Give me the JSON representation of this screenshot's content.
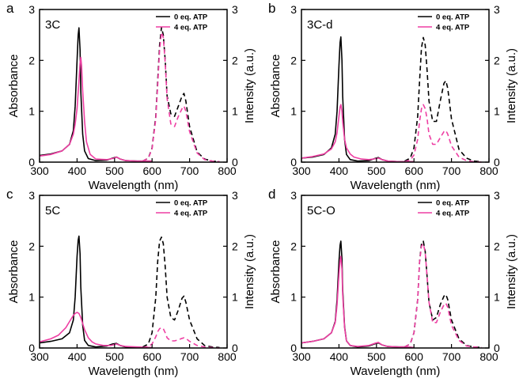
{
  "figure": {
    "series_labels": [
      "0 eq. ATP",
      "4 eq. ATP"
    ],
    "colors": {
      "zero_eq": "#000000",
      "four_eq": "#ee3fa3"
    }
  },
  "chart_data": [
    {
      "type": "line",
      "letter": "a",
      "name": "3C",
      "xlabel": "Wavelength (nm)",
      "ylabel": "Absorbance",
      "y2label": "Intensity (a.u.)",
      "xlim": [
        300,
        800
      ],
      "ylim": [
        0,
        3
      ],
      "y2lim": [
        0,
        3
      ],
      "xticks": [
        300,
        400,
        500,
        600,
        700,
        800
      ],
      "yticks": [
        0,
        1,
        2,
        3
      ],
      "y2ticks": [
        0,
        1,
        2,
        3
      ],
      "legend_position": "top-right",
      "series": [
        {
          "name": "0 eq. ATP",
          "kind": "absorbance",
          "color": "#000000",
          "x": [
            300,
            330,
            360,
            380,
            390,
            395,
            400,
            403,
            405,
            408,
            410,
            415,
            420,
            430,
            450,
            480,
            495,
            505,
            515,
            530,
            560,
            580,
            600
          ],
          "y": [
            0.13,
            0.16,
            0.22,
            0.35,
            0.62,
            1.1,
            2.0,
            2.5,
            2.64,
            2.2,
            1.4,
            0.55,
            0.22,
            0.07,
            0.03,
            0.04,
            0.08,
            0.1,
            0.06,
            0.03,
            0.02,
            0.02,
            0.02
          ]
        },
        {
          "name": "4 eq. ATP",
          "kind": "absorbance",
          "color": "#ee3fa3",
          "x": [
            300,
            330,
            360,
            380,
            390,
            395,
            400,
            405,
            408,
            410,
            412,
            415,
            420,
            425,
            435,
            450,
            480,
            500,
            505,
            515,
            530,
            560,
            600
          ],
          "y": [
            0.12,
            0.15,
            0.22,
            0.35,
            0.55,
            0.75,
            1.05,
            1.6,
            1.95,
            2.06,
            1.9,
            1.4,
            0.8,
            0.4,
            0.15,
            0.06,
            0.05,
            0.08,
            0.1,
            0.06,
            0.03,
            0.02,
            0.02
          ]
        },
        {
          "name": "0 eq. ATP",
          "kind": "emission",
          "color": "#000000",
          "x": [
            575,
            590,
            600,
            610,
            615,
            620,
            625,
            630,
            635,
            640,
            650,
            660,
            670,
            680,
            685,
            690,
            700,
            720,
            740,
            760,
            780
          ],
          "y": [
            0.02,
            0.08,
            0.28,
            0.9,
            1.6,
            2.3,
            2.65,
            2.5,
            2.0,
            1.3,
            0.95,
            0.9,
            1.1,
            1.3,
            1.35,
            1.2,
            0.7,
            0.2,
            0.06,
            0.02,
            0.01
          ]
        },
        {
          "name": "4 eq. ATP",
          "kind": "emission",
          "color": "#ee3fa3",
          "x": [
            575,
            590,
            600,
            610,
            615,
            620,
            625,
            630,
            635,
            640,
            650,
            660,
            670,
            680,
            685,
            690,
            700,
            720,
            740,
            760,
            780
          ],
          "y": [
            0.02,
            0.08,
            0.26,
            0.85,
            1.5,
            2.2,
            2.55,
            2.45,
            1.95,
            1.25,
            0.75,
            0.7,
            0.9,
            1.05,
            1.1,
            1.0,
            0.6,
            0.18,
            0.05,
            0.02,
            0.01
          ]
        }
      ]
    },
    {
      "type": "line",
      "letter": "b",
      "name": "3C-d",
      "xlabel": "Wavelength (nm)",
      "ylabel": "Absorbance",
      "y2label": "Intensity (a.u.)",
      "xlim": [
        300,
        800
      ],
      "ylim": [
        0,
        3
      ],
      "y2lim": [
        0,
        3
      ],
      "xticks": [
        300,
        400,
        500,
        600,
        700,
        800
      ],
      "yticks": [
        0,
        1,
        2,
        3
      ],
      "y2ticks": [
        0,
        1,
        2,
        3
      ],
      "legend_position": "top-right",
      "series": [
        {
          "name": "0 eq. ATP",
          "kind": "absorbance",
          "color": "#000000",
          "x": [
            300,
            330,
            360,
            380,
            390,
            395,
            400,
            403,
            405,
            408,
            410,
            415,
            420,
            430,
            450,
            480,
            495,
            505,
            515,
            530,
            560,
            580,
            600
          ],
          "y": [
            0.08,
            0.1,
            0.15,
            0.28,
            0.55,
            1.0,
            1.9,
            2.35,
            2.46,
            2.0,
            1.3,
            0.45,
            0.15,
            0.05,
            0.02,
            0.03,
            0.07,
            0.09,
            0.05,
            0.02,
            0.01,
            0.01,
            0.01
          ]
        },
        {
          "name": "4 eq. ATP",
          "kind": "absorbance",
          "color": "#ee3fa3",
          "x": [
            300,
            330,
            360,
            380,
            390,
            395,
            400,
            403,
            405,
            408,
            410,
            415,
            420,
            430,
            440,
            460,
            480,
            500,
            505,
            515,
            530,
            560,
            600
          ],
          "y": [
            0.08,
            0.11,
            0.16,
            0.26,
            0.4,
            0.58,
            0.9,
            1.08,
            1.13,
            1.0,
            0.8,
            0.45,
            0.28,
            0.16,
            0.1,
            0.06,
            0.05,
            0.07,
            0.08,
            0.05,
            0.02,
            0.01,
            0.01
          ]
        },
        {
          "name": "0 eq. ATP",
          "kind": "emission",
          "color": "#000000",
          "x": [
            575,
            590,
            600,
            610,
            615,
            620,
            625,
            630,
            635,
            640,
            650,
            660,
            670,
            680,
            685,
            690,
            700,
            720,
            740,
            760,
            780
          ],
          "y": [
            0.02,
            0.08,
            0.28,
            0.9,
            1.6,
            2.25,
            2.45,
            2.3,
            1.8,
            1.2,
            0.8,
            0.8,
            1.2,
            1.55,
            1.6,
            1.45,
            0.85,
            0.25,
            0.08,
            0.02,
            0.01
          ]
        },
        {
          "name": "4 eq. ATP",
          "kind": "emission",
          "color": "#ee3fa3",
          "x": [
            575,
            590,
            600,
            610,
            615,
            620,
            625,
            630,
            635,
            640,
            650,
            660,
            670,
            680,
            685,
            690,
            700,
            720,
            740,
            760,
            780
          ],
          "y": [
            0.01,
            0.04,
            0.14,
            0.45,
            0.8,
            1.05,
            1.13,
            1.05,
            0.85,
            0.55,
            0.35,
            0.35,
            0.48,
            0.6,
            0.62,
            0.55,
            0.32,
            0.1,
            0.03,
            0.01,
            0.0
          ]
        }
      ]
    },
    {
      "type": "line",
      "letter": "c",
      "name": "5C",
      "xlabel": "Wavelength (nm)",
      "ylabel": "Absorbance",
      "y2label": "Intensity (a.u.)",
      "xlim": [
        300,
        800
      ],
      "ylim": [
        0,
        3
      ],
      "y2lim": [
        0,
        3
      ],
      "xticks": [
        300,
        400,
        500,
        600,
        700,
        800
      ],
      "yticks": [
        0,
        1,
        2,
        3
      ],
      "y2ticks": [
        0,
        1,
        2,
        3
      ],
      "legend_position": "top-right",
      "series": [
        {
          "name": "0 eq. ATP",
          "kind": "absorbance",
          "color": "#000000",
          "x": [
            300,
            330,
            360,
            380,
            390,
            395,
            400,
            403,
            405,
            408,
            410,
            415,
            420,
            430,
            450,
            480,
            495,
            505,
            515,
            530,
            560,
            580,
            600
          ],
          "y": [
            0.1,
            0.13,
            0.18,
            0.3,
            0.55,
            1.0,
            1.8,
            2.12,
            2.2,
            1.85,
            1.2,
            0.45,
            0.15,
            0.05,
            0.02,
            0.04,
            0.08,
            0.09,
            0.05,
            0.02,
            0.01,
            0.01,
            0.01
          ]
        },
        {
          "name": "4 eq. ATP",
          "kind": "absorbance",
          "color": "#ee3fa3",
          "x": [
            300,
            330,
            350,
            370,
            380,
            390,
            395,
            400,
            405,
            410,
            415,
            420,
            430,
            440,
            450,
            470,
            490,
            500,
            505,
            515,
            530,
            560,
            600
          ],
          "y": [
            0.12,
            0.18,
            0.25,
            0.4,
            0.52,
            0.64,
            0.68,
            0.7,
            0.68,
            0.6,
            0.48,
            0.36,
            0.2,
            0.12,
            0.08,
            0.05,
            0.05,
            0.07,
            0.08,
            0.05,
            0.03,
            0.02,
            0.01
          ]
        },
        {
          "name": "0 eq. ATP",
          "kind": "emission",
          "color": "#000000",
          "x": [
            575,
            590,
            600,
            610,
            615,
            620,
            625,
            630,
            635,
            640,
            650,
            660,
            670,
            680,
            685,
            690,
            700,
            720,
            740,
            760,
            780
          ],
          "y": [
            0.02,
            0.08,
            0.3,
            1.0,
            1.7,
            2.1,
            2.18,
            2.05,
            1.6,
            1.0,
            0.6,
            0.55,
            0.75,
            0.98,
            1.02,
            0.9,
            0.55,
            0.18,
            0.05,
            0.02,
            0.01
          ]
        },
        {
          "name": "4 eq. ATP",
          "kind": "emission",
          "color": "#ee3fa3",
          "x": [
            575,
            590,
            600,
            610,
            615,
            620,
            625,
            630,
            635,
            640,
            650,
            660,
            670,
            680,
            685,
            690,
            700,
            720,
            740,
            760,
            780
          ],
          "y": [
            0.01,
            0.03,
            0.08,
            0.22,
            0.32,
            0.38,
            0.4,
            0.38,
            0.3,
            0.2,
            0.14,
            0.14,
            0.16,
            0.19,
            0.2,
            0.19,
            0.13,
            0.05,
            0.02,
            0.01,
            0.0
          ]
        }
      ]
    },
    {
      "type": "line",
      "letter": "d",
      "name": "5C-O",
      "xlabel": "Wavelength (nm)",
      "ylabel": "Absorbance",
      "y2label": "Intensity (a.u.)",
      "xlim": [
        300,
        800
      ],
      "ylim": [
        0,
        3
      ],
      "y2lim": [
        0,
        3
      ],
      "xticks": [
        300,
        400,
        500,
        600,
        700,
        800
      ],
      "yticks": [
        0,
        1,
        2,
        3
      ],
      "y2ticks": [
        0,
        1,
        2,
        3
      ],
      "legend_position": "top-right",
      "series": [
        {
          "name": "0 eq. ATP",
          "kind": "absorbance",
          "color": "#000000",
          "x": [
            300,
            330,
            360,
            380,
            390,
            395,
            400,
            403,
            405,
            408,
            410,
            415,
            420,
            430,
            450,
            480,
            495,
            505,
            515,
            530,
            560,
            580,
            600
          ],
          "y": [
            0.1,
            0.13,
            0.18,
            0.3,
            0.52,
            0.95,
            1.7,
            2.02,
            2.1,
            1.75,
            1.15,
            0.42,
            0.14,
            0.05,
            0.02,
            0.04,
            0.08,
            0.1,
            0.06,
            0.03,
            0.02,
            0.02,
            0.01
          ]
        },
        {
          "name": "4 eq. ATP",
          "kind": "absorbance",
          "color": "#ee3fa3",
          "x": [
            300,
            330,
            360,
            380,
            390,
            395,
            400,
            403,
            405,
            408,
            410,
            415,
            420,
            430,
            450,
            480,
            495,
            505,
            515,
            530,
            560,
            580,
            600
          ],
          "y": [
            0.1,
            0.13,
            0.18,
            0.3,
            0.5,
            0.85,
            1.45,
            1.72,
            1.8,
            1.55,
            1.05,
            0.4,
            0.14,
            0.05,
            0.03,
            0.05,
            0.09,
            0.11,
            0.06,
            0.03,
            0.02,
            0.02,
            0.01
          ]
        },
        {
          "name": "0 eq. ATP",
          "kind": "emission",
          "color": "#000000",
          "x": [
            575,
            590,
            600,
            610,
            615,
            620,
            625,
            630,
            635,
            640,
            650,
            660,
            670,
            680,
            685,
            690,
            700,
            720,
            740,
            760,
            780
          ],
          "y": [
            0.02,
            0.08,
            0.3,
            0.95,
            1.7,
            2.05,
            2.1,
            1.9,
            1.4,
            0.9,
            0.55,
            0.6,
            0.85,
            1.02,
            1.05,
            0.95,
            0.55,
            0.18,
            0.05,
            0.02,
            0.01
          ]
        },
        {
          "name": "4 eq. ATP",
          "kind": "emission",
          "color": "#ee3fa3",
          "x": [
            575,
            590,
            600,
            610,
            615,
            620,
            625,
            630,
            635,
            640,
            650,
            660,
            670,
            680,
            685,
            690,
            700,
            720,
            740,
            760,
            780
          ],
          "y": [
            0.02,
            0.08,
            0.3,
            0.95,
            1.7,
            2.0,
            2.05,
            1.88,
            1.4,
            0.9,
            0.5,
            0.5,
            0.7,
            0.85,
            0.88,
            0.8,
            0.45,
            0.15,
            0.04,
            0.02,
            0.01
          ]
        }
      ]
    }
  ]
}
